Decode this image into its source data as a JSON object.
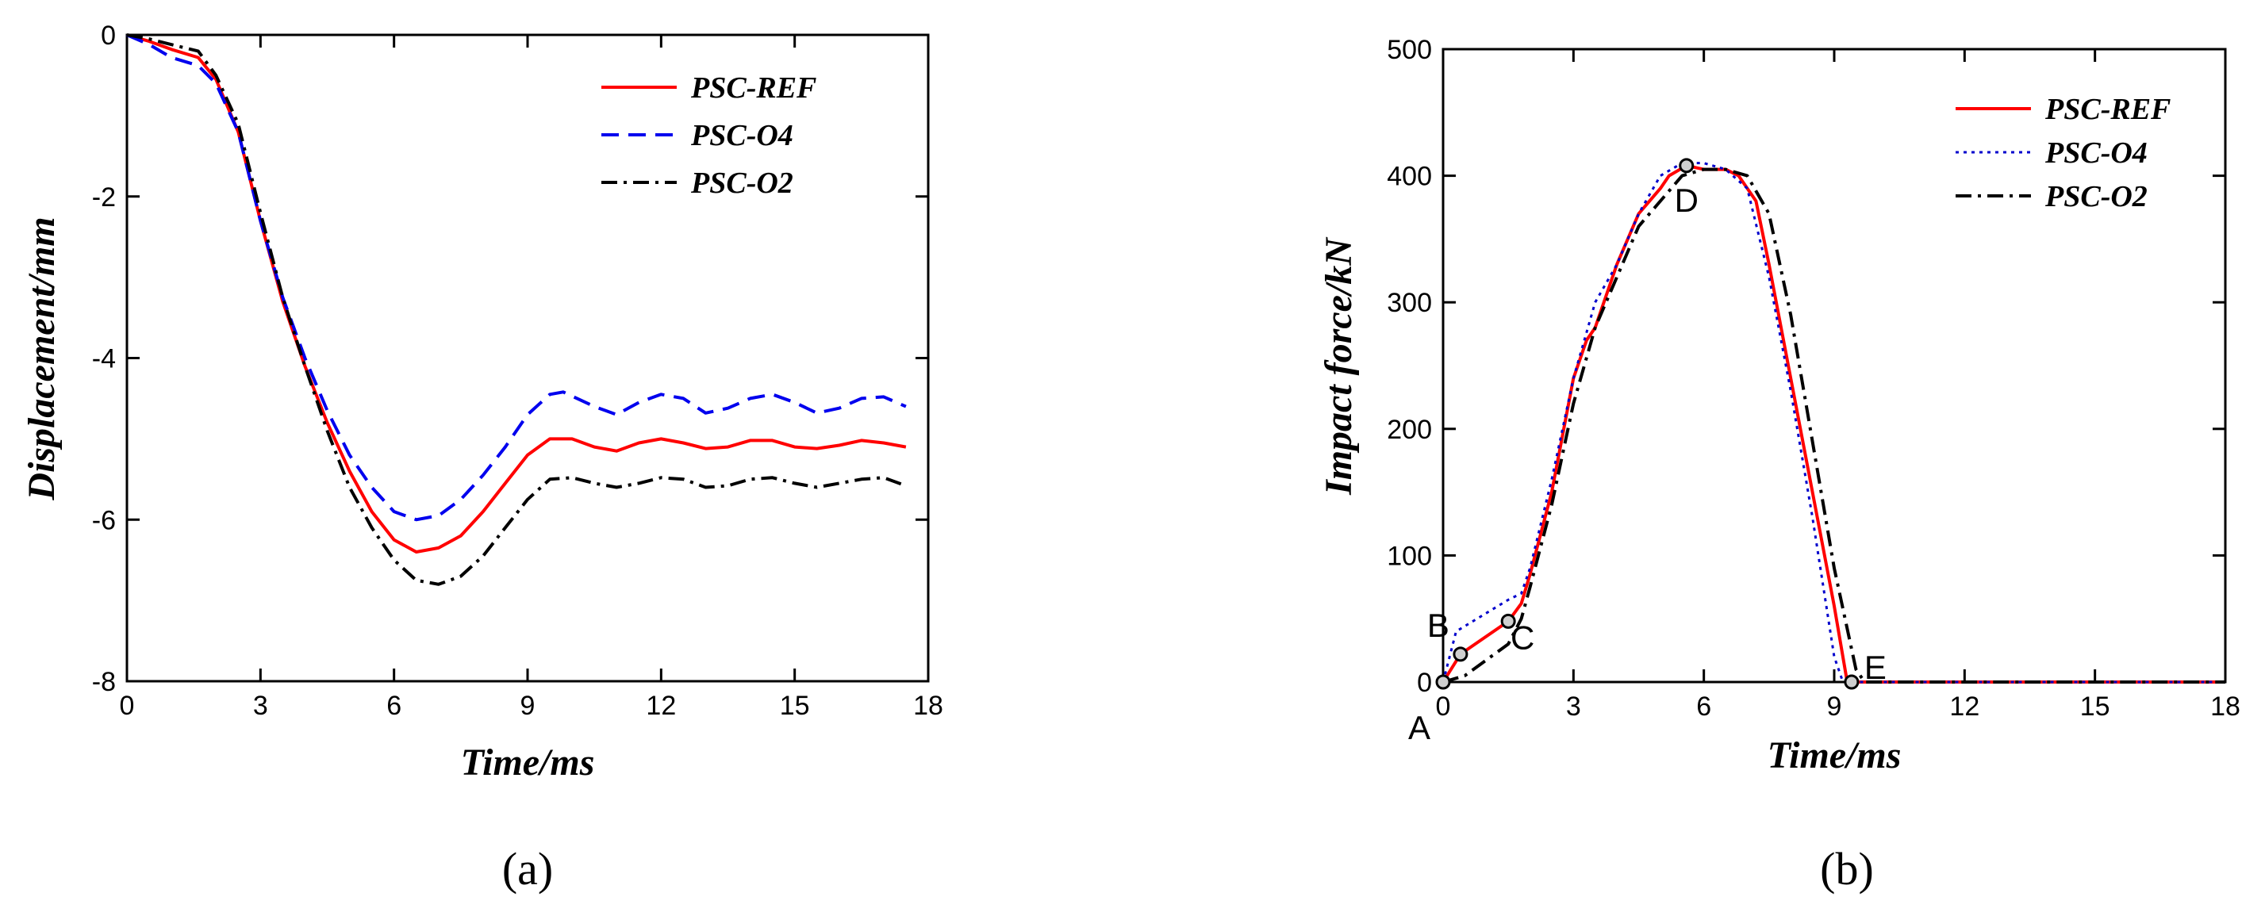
{
  "chart_data": [
    {
      "type": "line",
      "panel_label": "(a)",
      "xlabel": "Time/ms",
      "ylabel": "Displacement/mm",
      "xlim": [
        0,
        18
      ],
      "ylim": [
        -8,
        0
      ],
      "xticks": [
        0,
        3,
        6,
        9,
        12,
        15,
        18
      ],
      "yticks": [
        0,
        -2,
        -4,
        -6,
        -8
      ],
      "legend_position": "top-right",
      "series": [
        {
          "name": "PSC-REF",
          "color": "#ff0000",
          "dash": "solid",
          "points": [
            [
              0,
              0
            ],
            [
              0.5,
              -0.08
            ],
            [
              1,
              -0.18
            ],
            [
              1.6,
              -0.28
            ],
            [
              2,
              -0.55
            ],
            [
              2.5,
              -1.2
            ],
            [
              3,
              -2.3
            ],
            [
              3.5,
              -3.3
            ],
            [
              4,
              -4.1
            ],
            [
              4.5,
              -4.8
            ],
            [
              5,
              -5.4
            ],
            [
              5.5,
              -5.9
            ],
            [
              6,
              -6.25
            ],
            [
              6.5,
              -6.4
            ],
            [
              7,
              -6.35
            ],
            [
              7.5,
              -6.2
            ],
            [
              8,
              -5.9
            ],
            [
              8.5,
              -5.55
            ],
            [
              9,
              -5.2
            ],
            [
              9.5,
              -5.0
            ],
            [
              10,
              -5.0
            ],
            [
              10.5,
              -5.1
            ],
            [
              11,
              -5.15
            ],
            [
              11.5,
              -5.05
            ],
            [
              12,
              -5.0
            ],
            [
              12.5,
              -5.05
            ],
            [
              13,
              -5.12
            ],
            [
              13.5,
              -5.1
            ],
            [
              14,
              -5.02
            ],
            [
              14.5,
              -5.02
            ],
            [
              15,
              -5.1
            ],
            [
              15.5,
              -5.12
            ],
            [
              16,
              -5.08
            ],
            [
              16.5,
              -5.02
            ],
            [
              17,
              -5.05
            ],
            [
              17.5,
              -5.1
            ]
          ]
        },
        {
          "name": "PSC-O4",
          "color": "#0000ee",
          "dash": "dashed",
          "points": [
            [
              0,
              0
            ],
            [
              0.5,
              -0.12
            ],
            [
              1,
              -0.28
            ],
            [
              1.6,
              -0.38
            ],
            [
              2,
              -0.6
            ],
            [
              2.5,
              -1.2
            ],
            [
              3,
              -2.3
            ],
            [
              3.5,
              -3.25
            ],
            [
              4,
              -4.0
            ],
            [
              4.5,
              -4.65
            ],
            [
              5,
              -5.2
            ],
            [
              5.5,
              -5.6
            ],
            [
              6,
              -5.9
            ],
            [
              6.5,
              -6.0
            ],
            [
              7,
              -5.95
            ],
            [
              7.5,
              -5.75
            ],
            [
              8,
              -5.45
            ],
            [
              8.5,
              -5.1
            ],
            [
              9,
              -4.7
            ],
            [
              9.5,
              -4.45
            ],
            [
              9.8,
              -4.42
            ],
            [
              10.5,
              -4.6
            ],
            [
              11,
              -4.7
            ],
            [
              11.5,
              -4.55
            ],
            [
              12,
              -4.45
            ],
            [
              12.5,
              -4.5
            ],
            [
              13,
              -4.68
            ],
            [
              13.5,
              -4.62
            ],
            [
              14,
              -4.5
            ],
            [
              14.5,
              -4.45
            ],
            [
              15,
              -4.55
            ],
            [
              15.5,
              -4.68
            ],
            [
              16,
              -4.62
            ],
            [
              16.5,
              -4.5
            ],
            [
              17,
              -4.48
            ],
            [
              17.5,
              -4.6
            ]
          ]
        },
        {
          "name": "PSC-O2",
          "color": "#000000",
          "dash": "dashdot",
          "points": [
            [
              0,
              0
            ],
            [
              0.5,
              -0.05
            ],
            [
              1,
              -0.12
            ],
            [
              1.6,
              -0.2
            ],
            [
              2,
              -0.5
            ],
            [
              2.5,
              -1.1
            ],
            [
              3,
              -2.2
            ],
            [
              3.5,
              -3.25
            ],
            [
              4,
              -4.1
            ],
            [
              4.5,
              -4.9
            ],
            [
              5,
              -5.6
            ],
            [
              5.5,
              -6.1
            ],
            [
              6,
              -6.5
            ],
            [
              6.5,
              -6.75
            ],
            [
              7,
              -6.8
            ],
            [
              7.5,
              -6.7
            ],
            [
              8,
              -6.45
            ],
            [
              8.5,
              -6.1
            ],
            [
              9,
              -5.75
            ],
            [
              9.5,
              -5.5
            ],
            [
              10,
              -5.48
            ],
            [
              10.5,
              -5.55
            ],
            [
              11,
              -5.6
            ],
            [
              11.5,
              -5.55
            ],
            [
              12,
              -5.48
            ],
            [
              12.5,
              -5.5
            ],
            [
              13,
              -5.6
            ],
            [
              13.5,
              -5.58
            ],
            [
              14,
              -5.5
            ],
            [
              14.5,
              -5.48
            ],
            [
              15,
              -5.55
            ],
            [
              15.5,
              -5.6
            ],
            [
              16,
              -5.55
            ],
            [
              16.5,
              -5.5
            ],
            [
              17,
              -5.48
            ],
            [
              17.5,
              -5.58
            ]
          ]
        }
      ]
    },
    {
      "type": "line",
      "panel_label": "(b)",
      "xlabel": "Time/ms",
      "ylabel": "Impact force/kN",
      "xlim": [
        0,
        18
      ],
      "ylim": [
        0,
        500
      ],
      "xticks": [
        0,
        3,
        6,
        9,
        12,
        15,
        18
      ],
      "yticks": [
        0,
        100,
        200,
        300,
        400,
        500
      ],
      "legend_position": "top-right",
      "series": [
        {
          "name": "PSC-REF",
          "color": "#ff0000",
          "dash": "solid",
          "points": [
            [
              0,
              0
            ],
            [
              0.4,
              22
            ],
            [
              1.5,
              48
            ],
            [
              1.8,
              62
            ],
            [
              2,
              85
            ],
            [
              2.5,
              150
            ],
            [
              3,
              240
            ],
            [
              3.3,
              270
            ],
            [
              3.5,
              280
            ],
            [
              4,
              330
            ],
            [
              4.5,
              370
            ],
            [
              5,
              390
            ],
            [
              5.2,
              400
            ],
            [
              5.6,
              408
            ],
            [
              6,
              405
            ],
            [
              6.5,
              405
            ],
            [
              6.8,
              400
            ],
            [
              7.2,
              380
            ],
            [
              7.5,
              330
            ],
            [
              8,
              240
            ],
            [
              8.5,
              150
            ],
            [
              9,
              60
            ],
            [
              9.3,
              0
            ],
            [
              9.5,
              0
            ],
            [
              18,
              0
            ]
          ]
        },
        {
          "name": "PSC-O4",
          "color": "#0000cc",
          "dash": "dotted",
          "points": [
            [
              0,
              0
            ],
            [
              0.3,
              40
            ],
            [
              1.5,
              65
            ],
            [
              1.8,
              70
            ],
            [
              2,
              90
            ],
            [
              2.5,
              160
            ],
            [
              3,
              240
            ],
            [
              3.5,
              300
            ],
            [
              4,
              330
            ],
            [
              4.5,
              370
            ],
            [
              5,
              400
            ],
            [
              5.5,
              410
            ],
            [
              6,
              410
            ],
            [
              6.5,
              405
            ],
            [
              7,
              390
            ],
            [
              7.5,
              320
            ],
            [
              8,
              230
            ],
            [
              8.5,
              130
            ],
            [
              9,
              20
            ],
            [
              9.2,
              0
            ],
            [
              18,
              0
            ]
          ]
        },
        {
          "name": "PSC-O2",
          "color": "#000000",
          "dash": "dashdot",
          "points": [
            [
              0,
              0
            ],
            [
              0.5,
              5
            ],
            [
              1.5,
              30
            ],
            [
              1.8,
              50
            ],
            [
              2,
              75
            ],
            [
              2.5,
              140
            ],
            [
              3,
              220
            ],
            [
              3.5,
              280
            ],
            [
              4,
              320
            ],
            [
              4.5,
              360
            ],
            [
              5,
              380
            ],
            [
              5.5,
              400
            ],
            [
              6,
              405
            ],
            [
              6.5,
              405
            ],
            [
              7,
              400
            ],
            [
              7.5,
              370
            ],
            [
              8,
              290
            ],
            [
              8.5,
              190
            ],
            [
              9,
              90
            ],
            [
              9.5,
              10
            ],
            [
              9.7,
              0
            ],
            [
              18,
              0
            ]
          ]
        }
      ],
      "annotations": [
        {
          "label": "A",
          "x": 0,
          "y": 0
        },
        {
          "label": "B",
          "x": 0.4,
          "y": 22
        },
        {
          "label": "C",
          "x": 1.5,
          "y": 48
        },
        {
          "label": "D",
          "x": 5.6,
          "y": 408
        },
        {
          "label": "E",
          "x": 9.4,
          "y": 0
        }
      ]
    }
  ]
}
